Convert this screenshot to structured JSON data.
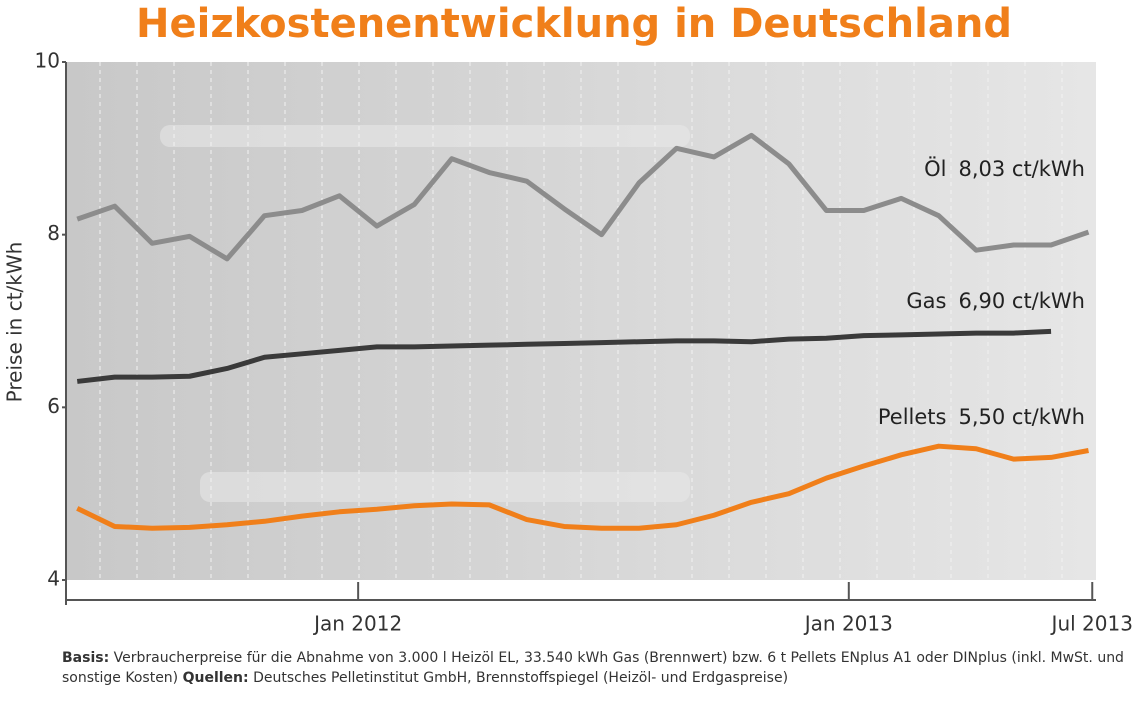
{
  "chart_data": {
    "type": "line",
    "title": "Heizkostenentwicklung in Deutschland",
    "ylabel": "Preise in ct/kWh",
    "categories": [
      null,
      null,
      null,
      null,
      null,
      null,
      null,
      null,
      null,
      null,
      null,
      null,
      null,
      null,
      null,
      null,
      null,
      null,
      null,
      null,
      null,
      null,
      null,
      null,
      null,
      null,
      null,
      null
    ],
    "xlim": [
      -0.3,
      27.2
    ],
    "xticks": [
      {
        "value": 7.5,
        "label": "Jan 2012"
      },
      {
        "value": 20.6,
        "label": "Jan 2013"
      },
      {
        "value": 27.1,
        "label": "Jul 2013"
      }
    ],
    "ylim": [
      4,
      10
    ],
    "yticks": [
      4,
      6,
      8,
      10
    ],
    "series": [
      {
        "name": "Öl",
        "end_label": "8,03 ct/kWh",
        "color": "#8c8c8c",
        "values": [
          8.18,
          8.33,
          7.9,
          7.98,
          7.72,
          8.22,
          8.28,
          8.45,
          8.1,
          8.35,
          8.88,
          8.72,
          8.62,
          8.3,
          8.0,
          8.6,
          9.0,
          8.9,
          9.15,
          8.82,
          8.28,
          8.28,
          8.42,
          8.22,
          7.82,
          7.88,
          7.88,
          8.03
        ]
      },
      {
        "name": "Gas",
        "end_label": "6,90 ct/kWh",
        "color": "#3a3a3a",
        "values": [
          6.3,
          6.35,
          6.35,
          6.36,
          6.45,
          6.58,
          6.62,
          6.66,
          6.7,
          6.7,
          6.71,
          6.72,
          6.73,
          6.74,
          6.75,
          6.76,
          6.77,
          6.77,
          6.76,
          6.79,
          6.8,
          6.83,
          6.84,
          6.85,
          6.86,
          6.86,
          6.88,
          null
        ]
      },
      {
        "name": "Pellets",
        "end_label": "5,50 ct/kWh",
        "color": "#f07f1a",
        "values": [
          4.83,
          4.62,
          4.6,
          4.61,
          4.64,
          4.68,
          4.74,
          4.79,
          4.82,
          4.86,
          4.88,
          4.87,
          4.7,
          4.62,
          4.6,
          4.6,
          4.64,
          4.75,
          4.9,
          5.0,
          5.18,
          5.32,
          5.45,
          5.55,
          5.52,
          5.4,
          5.42,
          5.5
        ]
      }
    ],
    "notes": [
      {
        "bold": "Basis:",
        "text": " Verbraucherpreise für die Abnahme von 3.000 l Heizöl EL, 33.540 kWh Gas (Brennwert) bzw. 6 t Pellets ENplus A1 oder DINplus (inkl. MwSt. und sonstige Kosten) "
      },
      {
        "bold": "Quellen:",
        "text": " Deutsches Pelletinstitut GmbH, Brennstoffspiegel (Heizöl- und Erdgaspreise)"
      }
    ]
  }
}
